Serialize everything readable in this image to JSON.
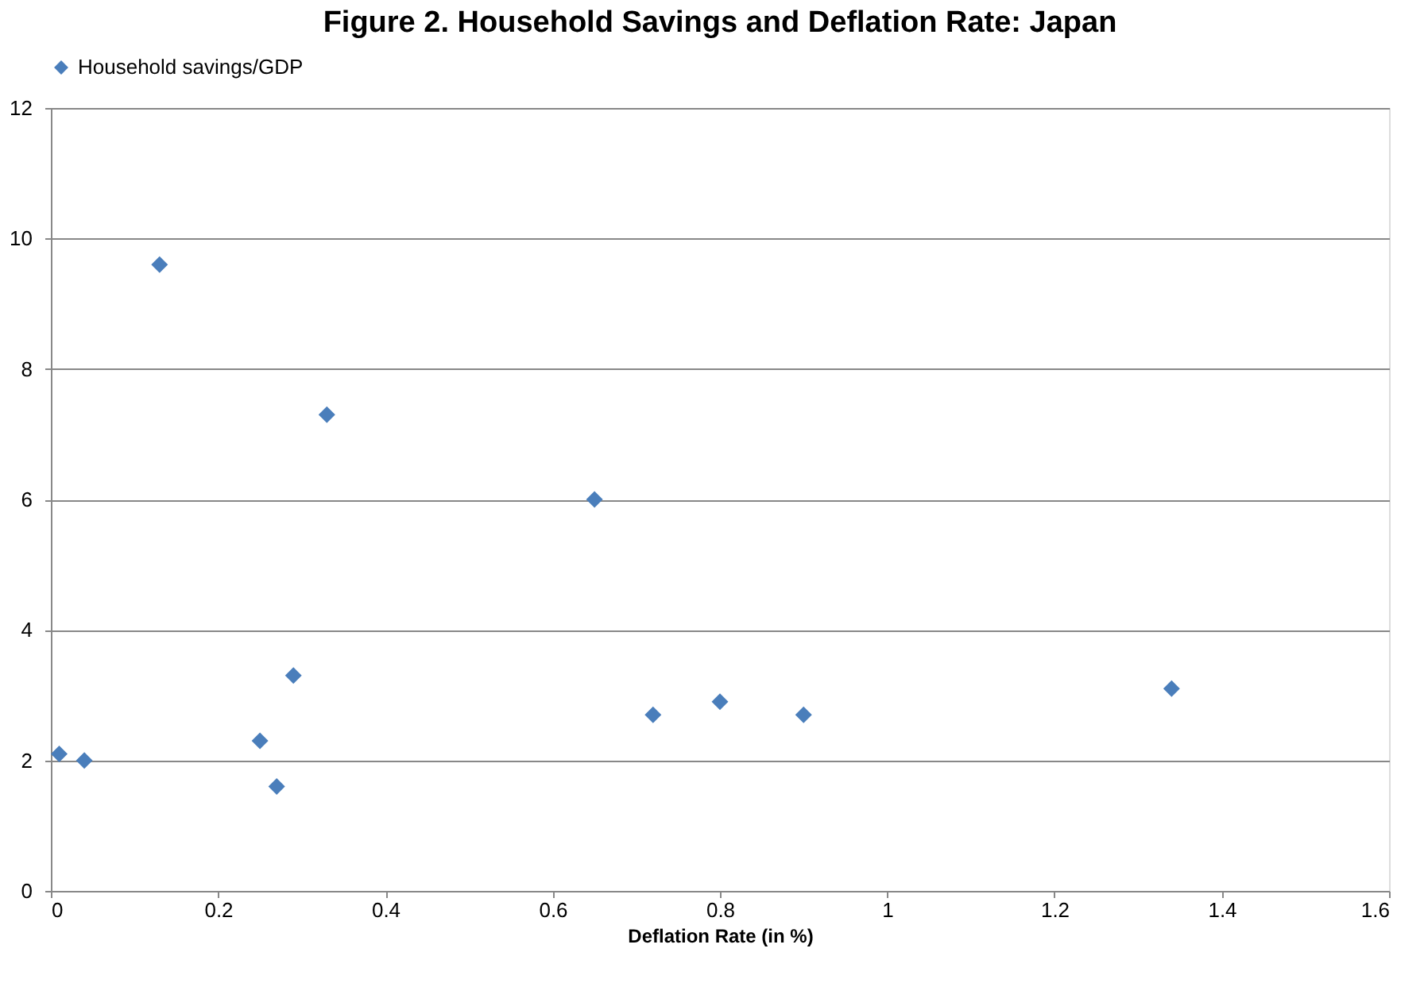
{
  "chart_data": {
    "type": "scatter",
    "title": "Figure 2. Household Savings and Deflation Rate: Japan",
    "xlabel": "Deflation Rate (in %)",
    "x": [
      0.01,
      0.04,
      0.13,
      0.25,
      0.27,
      0.29,
      0.33,
      0.65,
      0.72,
      0.8,
      0.9,
      1.34
    ],
    "series": [
      {
        "name": "Household savings/GDP",
        "color": "#4a7ebb",
        "values": [
          2.1,
          2.0,
          9.6,
          2.3,
          1.6,
          3.3,
          7.3,
          6.0,
          2.7,
          2.9,
          2.7,
          3.1
        ]
      }
    ],
    "xlim": [
      0,
      1.6
    ],
    "xticks": [
      0,
      0.2,
      0.4,
      0.6,
      0.8,
      1,
      1.2,
      1.4,
      1.6
    ],
    "ylim": [
      0,
      12
    ],
    "yticks": [
      0,
      2,
      4,
      6,
      8,
      10,
      12
    ],
    "grid": "y",
    "legend": "top",
    "marker": "diamond"
  }
}
